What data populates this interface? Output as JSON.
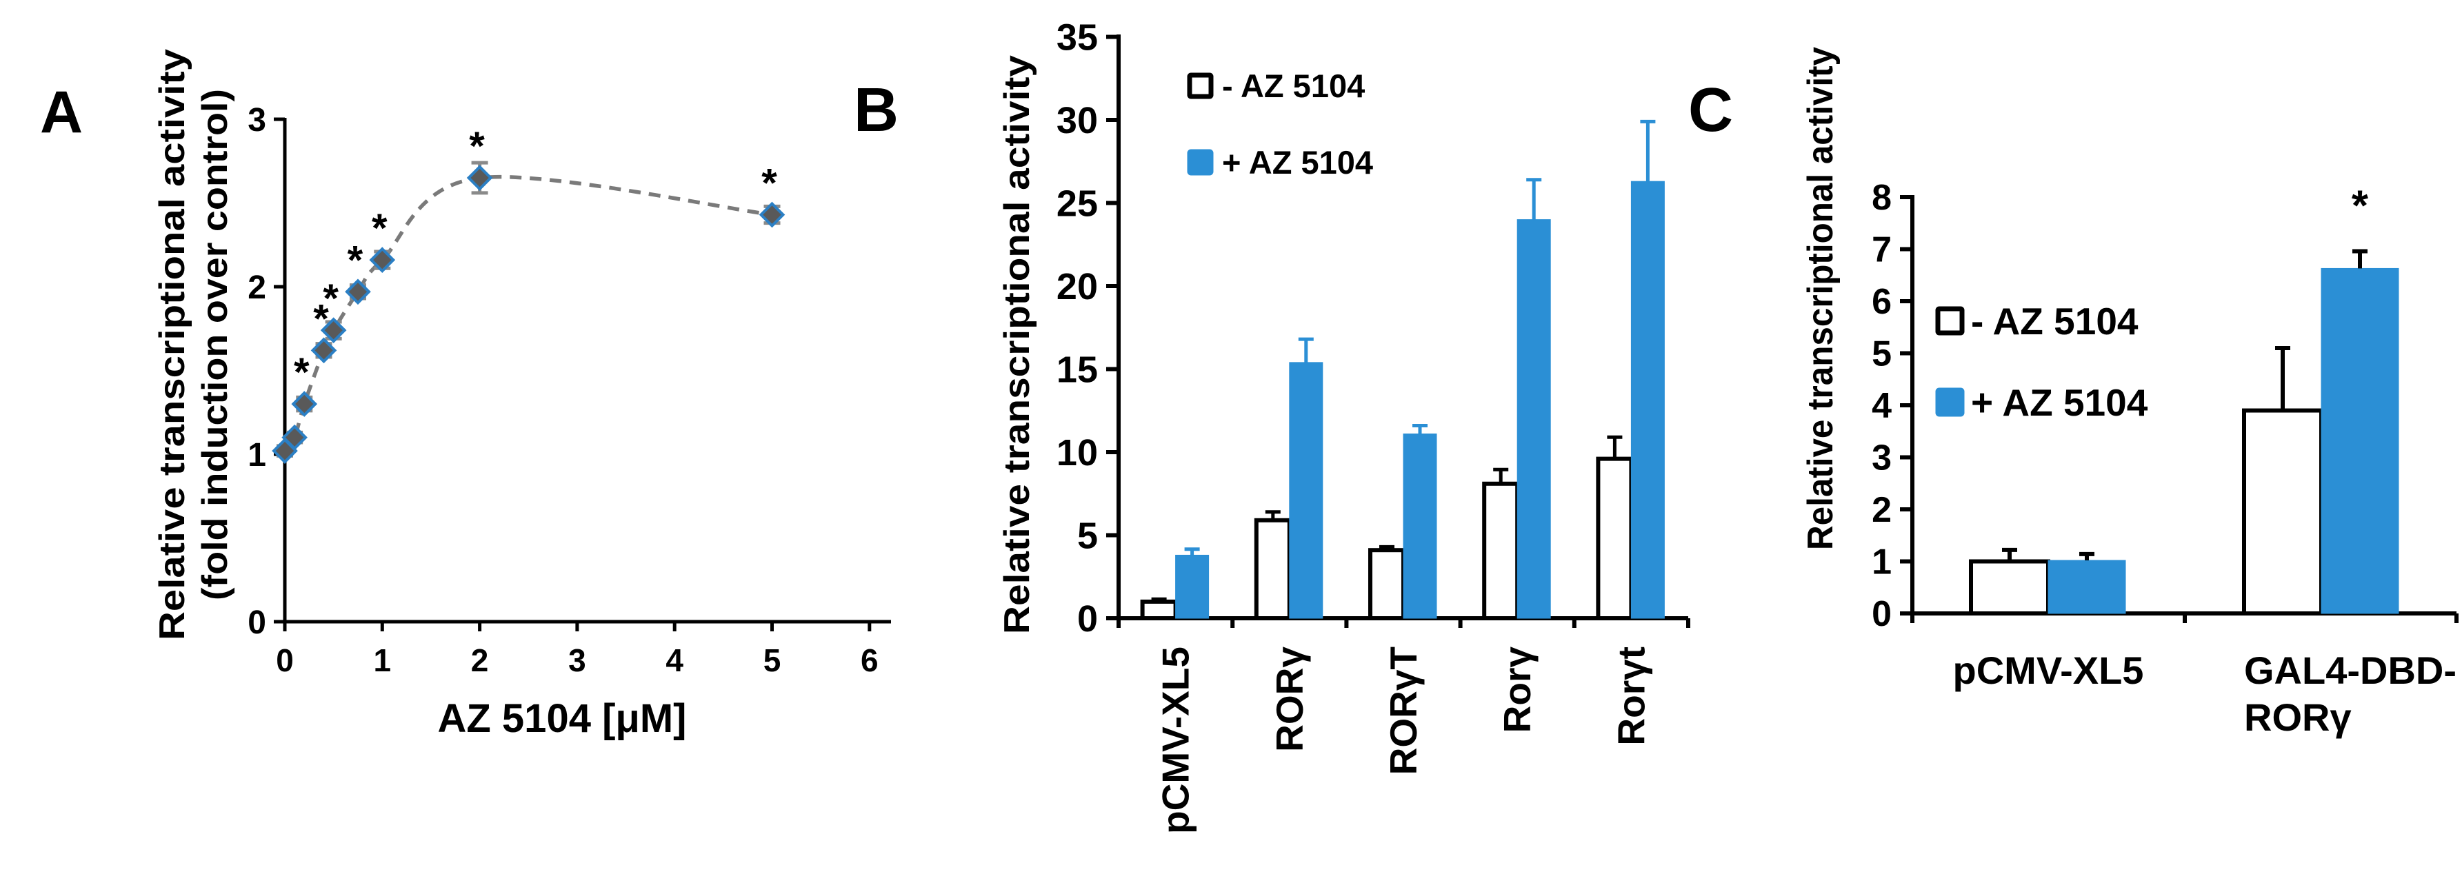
{
  "figure": {
    "panels": [
      {
        "label": "A"
      },
      {
        "label": "B"
      },
      {
        "label": "C"
      }
    ]
  },
  "colors": {
    "bar_blue": "#2b8fd5",
    "marker_fill": "#595959",
    "marker_outline": "#2b7fc4",
    "dash_line": "#7a7a7a",
    "error_gray": "#8a8a8a",
    "axis_black": "#000000",
    "open_bar_fill": "#ffffff"
  },
  "chart_data": [
    {
      "id": "A",
      "type": "scatter",
      "panel_label": "A",
      "xlabel": "AZ 5104 [μM]",
      "ylabel_line1": "Relative transcriptional activity",
      "ylabel_line2": "(fold induction over control)",
      "xlim": [
        0,
        6
      ],
      "ylim": [
        0,
        3
      ],
      "xticks": [
        0,
        1,
        2,
        3,
        4,
        5,
        6
      ],
      "yticks": [
        0,
        1,
        2,
        3
      ],
      "line_style": "dashed",
      "marker": "diamond",
      "sig_symbol": "*",
      "points": [
        {
          "x": 0,
          "y": 1.02,
          "err": 0.03,
          "sig": false
        },
        {
          "x": 0.1,
          "y": 1.1,
          "err": 0.03,
          "sig": false
        },
        {
          "x": 0.2,
          "y": 1.3,
          "err": 0.04,
          "sig": true
        },
        {
          "x": 0.4,
          "y": 1.62,
          "err": 0.04,
          "sig": true
        },
        {
          "x": 0.5,
          "y": 1.74,
          "err": 0.05,
          "sig": true
        },
        {
          "x": 0.75,
          "y": 1.97,
          "err": 0.04,
          "sig": true
        },
        {
          "x": 1,
          "y": 2.16,
          "err": 0.05,
          "sig": true
        },
        {
          "x": 2,
          "y": 2.65,
          "err": 0.09,
          "sig": true
        },
        {
          "x": 5,
          "y": 2.43,
          "err": 0.05,
          "sig": true
        }
      ]
    },
    {
      "id": "B",
      "type": "bar",
      "panel_label": "B",
      "ylabel": "Relative transcriptional activity",
      "ylim": [
        0,
        35
      ],
      "yticks": [
        0,
        5,
        10,
        15,
        20,
        25,
        30,
        35
      ],
      "categories": [
        "pCMV-XL5",
        "RORγ",
        "RORγT",
        "Rorγ",
        "Rorγt"
      ],
      "series": [
        {
          "name": "- AZ 5104",
          "style": "open",
          "values": [
            1.0,
            5.9,
            4.1,
            8.1,
            9.6
          ],
          "errors": [
            0.15,
            0.5,
            0.2,
            0.85,
            1.3
          ]
        },
        {
          "name": "+ AZ 5104",
          "style": "filled",
          "values": [
            3.8,
            15.4,
            11.1,
            24.0,
            26.3
          ],
          "errors": [
            0.36,
            1.4,
            0.5,
            2.4,
            3.6
          ]
        }
      ],
      "legend": [
        "- AZ 5104",
        "+ AZ 5104"
      ],
      "legend_position": "upper-left-inside",
      "sig_marks": []
    },
    {
      "id": "C",
      "type": "bar",
      "panel_label": "C",
      "ylabel": "Relative transcriptional activity",
      "ylim": [
        0,
        8
      ],
      "yticks": [
        0,
        1,
        2,
        3,
        4,
        5,
        6,
        7,
        8
      ],
      "categories": [
        "pCMV-XL5",
        "GAL4-DBD-\nRORγ"
      ],
      "series": [
        {
          "name": "- AZ 5104",
          "style": "open",
          "values": [
            1.0,
            3.9
          ],
          "errors": [
            0.22,
            1.2
          ]
        },
        {
          "name": "+ AZ 5104",
          "style": "filled",
          "values": [
            1.02,
            6.63
          ],
          "errors": [
            0.12,
            0.33
          ]
        }
      ],
      "legend": [
        "- AZ 5104",
        "+ AZ 5104"
      ],
      "legend_position": "left-inside",
      "sig_marks": [
        {
          "category_index": 1,
          "series_index": 1,
          "symbol": "*"
        }
      ]
    }
  ]
}
